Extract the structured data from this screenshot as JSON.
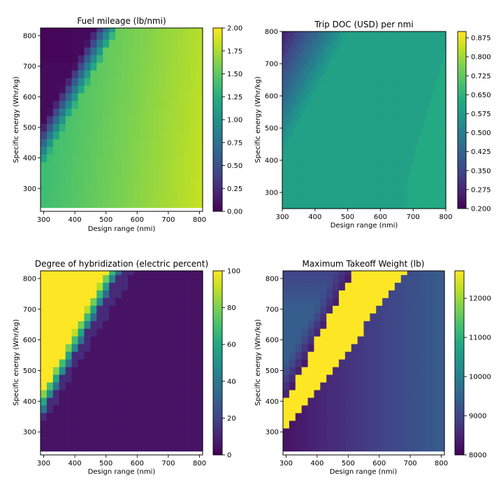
{
  "figure": {
    "background": "#ffffff"
  },
  "chart_data": [
    {
      "id": "fuel",
      "type": "heatmap",
      "title": "Fuel mileage (lb/nmi)",
      "xlabel": "Design range (nmi)",
      "ylabel": "Specific energy (Whr/kg)",
      "xlim": [
        290,
        810
      ],
      "ylim": [
        225,
        825
      ],
      "x_ticks": [
        300,
        400,
        500,
        600,
        700,
        800
      ],
      "y_ticks": [
        300,
        400,
        500,
        600,
        700,
        800
      ],
      "colorbar": {
        "min": 0.0,
        "max": 2.0,
        "ticks": [
          0.0,
          0.25,
          0.5,
          0.75,
          1.0,
          1.25,
          1.5,
          1.75,
          2.0
        ],
        "tick_labels": [
          "0.00",
          "0.25",
          "0.50",
          "0.75",
          "1.00",
          "1.25",
          "1.50",
          "1.75",
          "2.00"
        ]
      },
      "grid": {
        "x_centers_start": 300,
        "x_step": 20,
        "nx": 26,
        "y_centers_start": 250,
        "y_step": 25,
        "ny": 24
      },
      "model": "Electric region (low mileage, ~0.05-1.4 lb/nmi) above a diagonal boundary from (300 nmi, 375 Whr/kg) to (540 nmi, 830 Whr/kg); hybrid region below with ~1.38-1.82 lb/nmi, increasing with range"
    },
    {
      "id": "doc",
      "type": "contour",
      "title": "Trip DOC (USD) per nmi",
      "xlabel": "Design range (nmi)",
      "ylabel": "Specific energy (Whr/kg)",
      "xlim": [
        300,
        800
      ],
      "ylim": [
        250,
        800
      ],
      "x_ticks": [
        300,
        400,
        500,
        600,
        700,
        800
      ],
      "y_ticks": [
        300,
        400,
        500,
        600,
        700,
        800
      ],
      "colorbar": {
        "min": 0.2,
        "max": 0.9,
        "ticks": [
          0.2,
          0.275,
          0.35,
          0.425,
          0.5,
          0.575,
          0.65,
          0.725,
          0.8,
          0.875
        ],
        "tick_labels": [
          "0.200",
          "0.275",
          "0.350",
          "0.425",
          "0.500",
          "0.575",
          "0.650",
          "0.725",
          "0.800",
          "0.875"
        ]
      },
      "model": "Cost per nmi ~0.26-0.30 USD in the electric top-left corner, rising diagonally to a plateau of ~0.60-0.63 USD in the hybrid region"
    },
    {
      "id": "hyb",
      "type": "heatmap",
      "title": "Degree of hybridization (electric percent)",
      "xlabel": "Design range (nmi)",
      "ylabel": "Specific energy (Whr/kg)",
      "xlim": [
        290,
        810
      ],
      "ylim": [
        225,
        825
      ],
      "x_ticks": [
        300,
        400,
        500,
        600,
        700,
        800
      ],
      "y_ticks": [
        300,
        400,
        500,
        600,
        700,
        800
      ],
      "colorbar": {
        "min": 0,
        "max": 100,
        "ticks": [
          0,
          20,
          40,
          60,
          80,
          100
        ],
        "tick_labels": [
          "0",
          "20",
          "40",
          "60",
          "80",
          "100"
        ]
      },
      "grid": {
        "x_centers_start": 300,
        "x_step": 20,
        "nx": 26,
        "y_centers_start": 250,
        "y_step": 25,
        "ny": 24
      },
      "model": "100% electric in top-left region; 30-90% in a transition band; ~3-12% elsewhere"
    },
    {
      "id": "mtow",
      "type": "heatmap",
      "title": "Maximum Takeoff Weight (lb)",
      "xlabel": "Design range (nmi)",
      "ylabel": "Specific energy (Whr/kg)",
      "xlim": [
        290,
        810
      ],
      "ylim": [
        225,
        825
      ],
      "x_ticks": [
        300,
        400,
        500,
        600,
        700,
        800
      ],
      "y_ticks": [
        300,
        400,
        500,
        600,
        700,
        800
      ],
      "colorbar": {
        "min": 8000,
        "max": 12700,
        "ticks": [
          8000,
          9000,
          10000,
          11000,
          12000
        ],
        "tick_labels": [
          "8000",
          "9000",
          "10000",
          "11000",
          "12000"
        ]
      },
      "grid": {
        "x_centers_start": 300,
        "x_step": 20,
        "nx": 26,
        "y_centers_start": 250,
        "y_step": 25,
        "ny": 24
      },
      "model": "~8200-9400 lb in top-left electric region, ~12700 lb (capped) in a wide diagonal band, ~8200-9300 lb in lower-right hybrid region"
    }
  ]
}
